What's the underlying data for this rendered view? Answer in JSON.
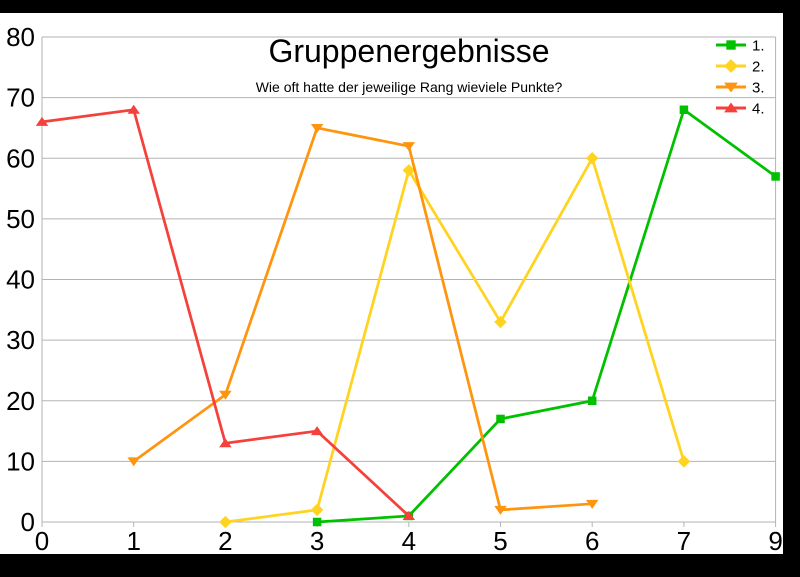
{
  "frame": {
    "background": "#000000",
    "canvas_background": "#ffffff"
  },
  "chart_data": {
    "type": "line",
    "title": "Gruppenergebnisse",
    "subtitle": "Wie oft hatte der jeweilige Rang wieviele Punkte?",
    "categories": [
      "0",
      "1",
      "2",
      "3",
      "4",
      "5",
      "6",
      "7",
      "9"
    ],
    "series": [
      {
        "name": "1.",
        "color": "#00C000",
        "marker": "square",
        "values": [
          null,
          null,
          null,
          0,
          1,
          17,
          20,
          68,
          57
        ]
      },
      {
        "name": "2.",
        "color": "#FFD320",
        "marker": "diamond",
        "values": [
          null,
          null,
          0,
          2,
          58,
          33,
          60,
          10,
          null
        ]
      },
      {
        "name": "3.",
        "color": "#FF950E",
        "marker": "triangle-down",
        "values": [
          null,
          10,
          21,
          65,
          62,
          2,
          3,
          null,
          null
        ]
      },
      {
        "name": "4.",
        "color": "#F5413C",
        "marker": "triangle-up",
        "values": [
          66,
          68,
          13,
          15,
          1,
          null,
          null,
          null,
          null
        ]
      }
    ],
    "xlabel": "",
    "ylabel": "",
    "ylim": [
      0,
      80
    ],
    "y_ticks": [
      0,
      10,
      20,
      30,
      40,
      50,
      60,
      70,
      80
    ],
    "grid": "horizontal-only",
    "gridline_color": "#b3b3b3",
    "axis_text_color": "#000000",
    "legend_position": "top-right"
  }
}
